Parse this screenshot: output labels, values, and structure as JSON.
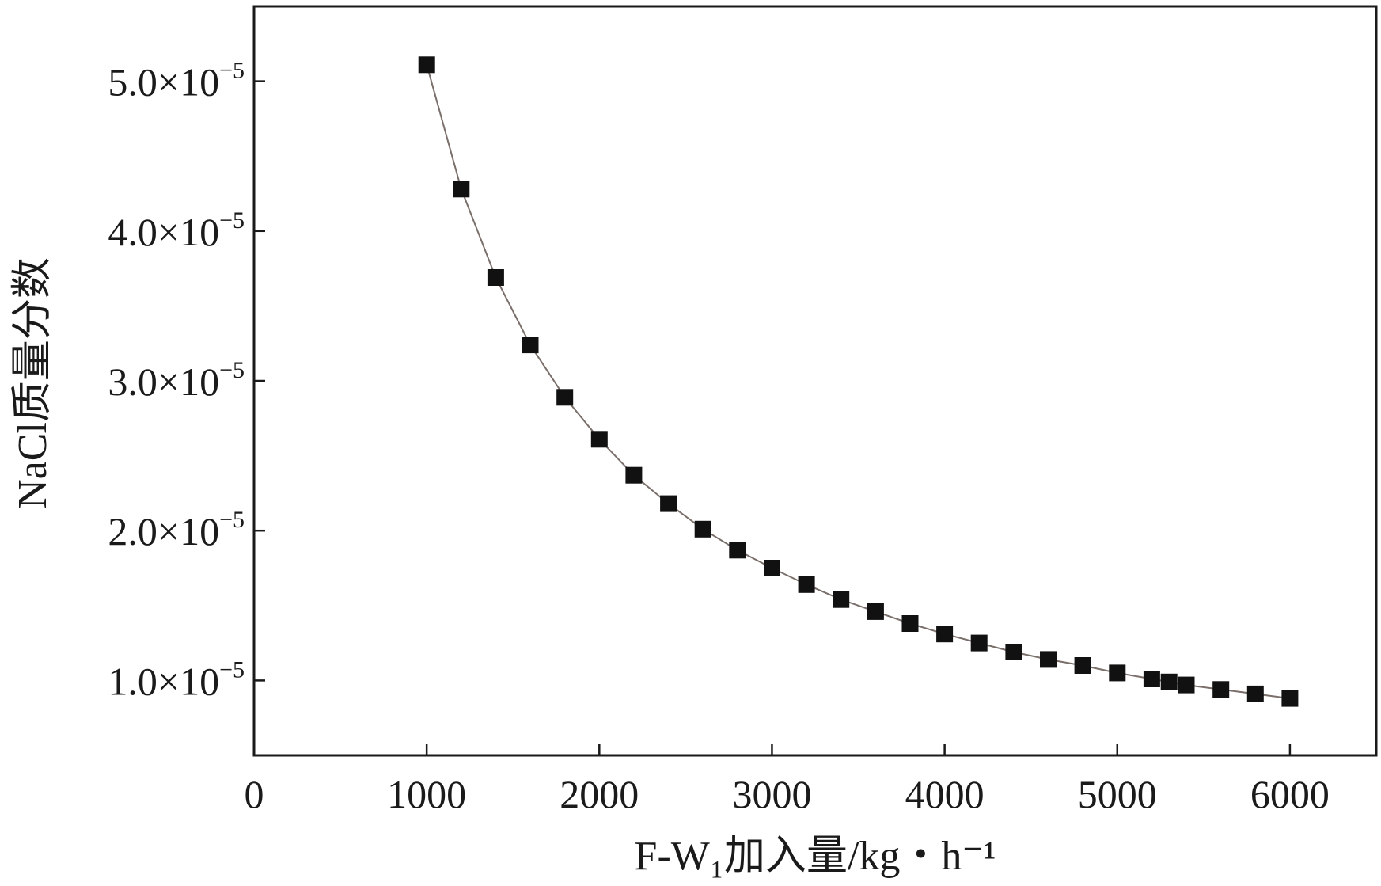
{
  "chart_data": {
    "type": "line",
    "title": "",
    "xlabel": "F-W₁加入量/kg・h⁻¹",
    "ylabel": "NaCl质量分数",
    "xlim": [
      0,
      6500
    ],
    "ylim": [
      5e-06,
      5.5e-05
    ],
    "x_ticks": [
      0,
      1000,
      2000,
      3000,
      4000,
      5000,
      6000
    ],
    "x_tick_labels": [
      "0",
      "1000",
      "2000",
      "3000",
      "4000",
      "5000",
      "6000"
    ],
    "y_ticks": [
      1e-05,
      2e-05,
      3e-05,
      4e-05,
      5e-05
    ],
    "y_tick_labels": [
      {
        "mantissa": "1.0",
        "base": "×10",
        "exponent": "−5"
      },
      {
        "mantissa": "2.0",
        "base": "×10",
        "exponent": "−5"
      },
      {
        "mantissa": "3.0",
        "base": "×10",
        "exponent": "−5"
      },
      {
        "mantissa": "4.0",
        "base": "×10",
        "exponent": "−5"
      },
      {
        "mantissa": "5.0",
        "base": "×10",
        "exponent": "−5"
      }
    ],
    "grid": false,
    "marker": "square",
    "colors": {
      "marker": "#111111",
      "line": "#7a6f6a",
      "axis": "#1a1a1a"
    },
    "series": [
      {
        "x": [
          1000,
          1200,
          1400,
          1600,
          1800,
          2000,
          2200,
          2400,
          2600,
          2800,
          3000,
          3200,
          3400,
          3600,
          3800,
          4000,
          4200,
          4400,
          4600,
          4800,
          5000,
          5200,
          5300,
          5400,
          5600,
          5800,
          6000
        ],
        "y": [
          5.11e-05,
          4.28e-05,
          3.69e-05,
          3.24e-05,
          2.89e-05,
          2.61e-05,
          2.37e-05,
          2.18e-05,
          2.01e-05,
          1.87e-05,
          1.75e-05,
          1.64e-05,
          1.54e-05,
          1.46e-05,
          1.38e-05,
          1.31e-05,
          1.25e-05,
          1.19e-05,
          1.14e-05,
          1.1e-05,
          1.05e-05,
          1.01e-05,
          9.9e-06,
          9.7e-06,
          9.4e-06,
          9.1e-06,
          8.8e-06
        ]
      }
    ]
  }
}
